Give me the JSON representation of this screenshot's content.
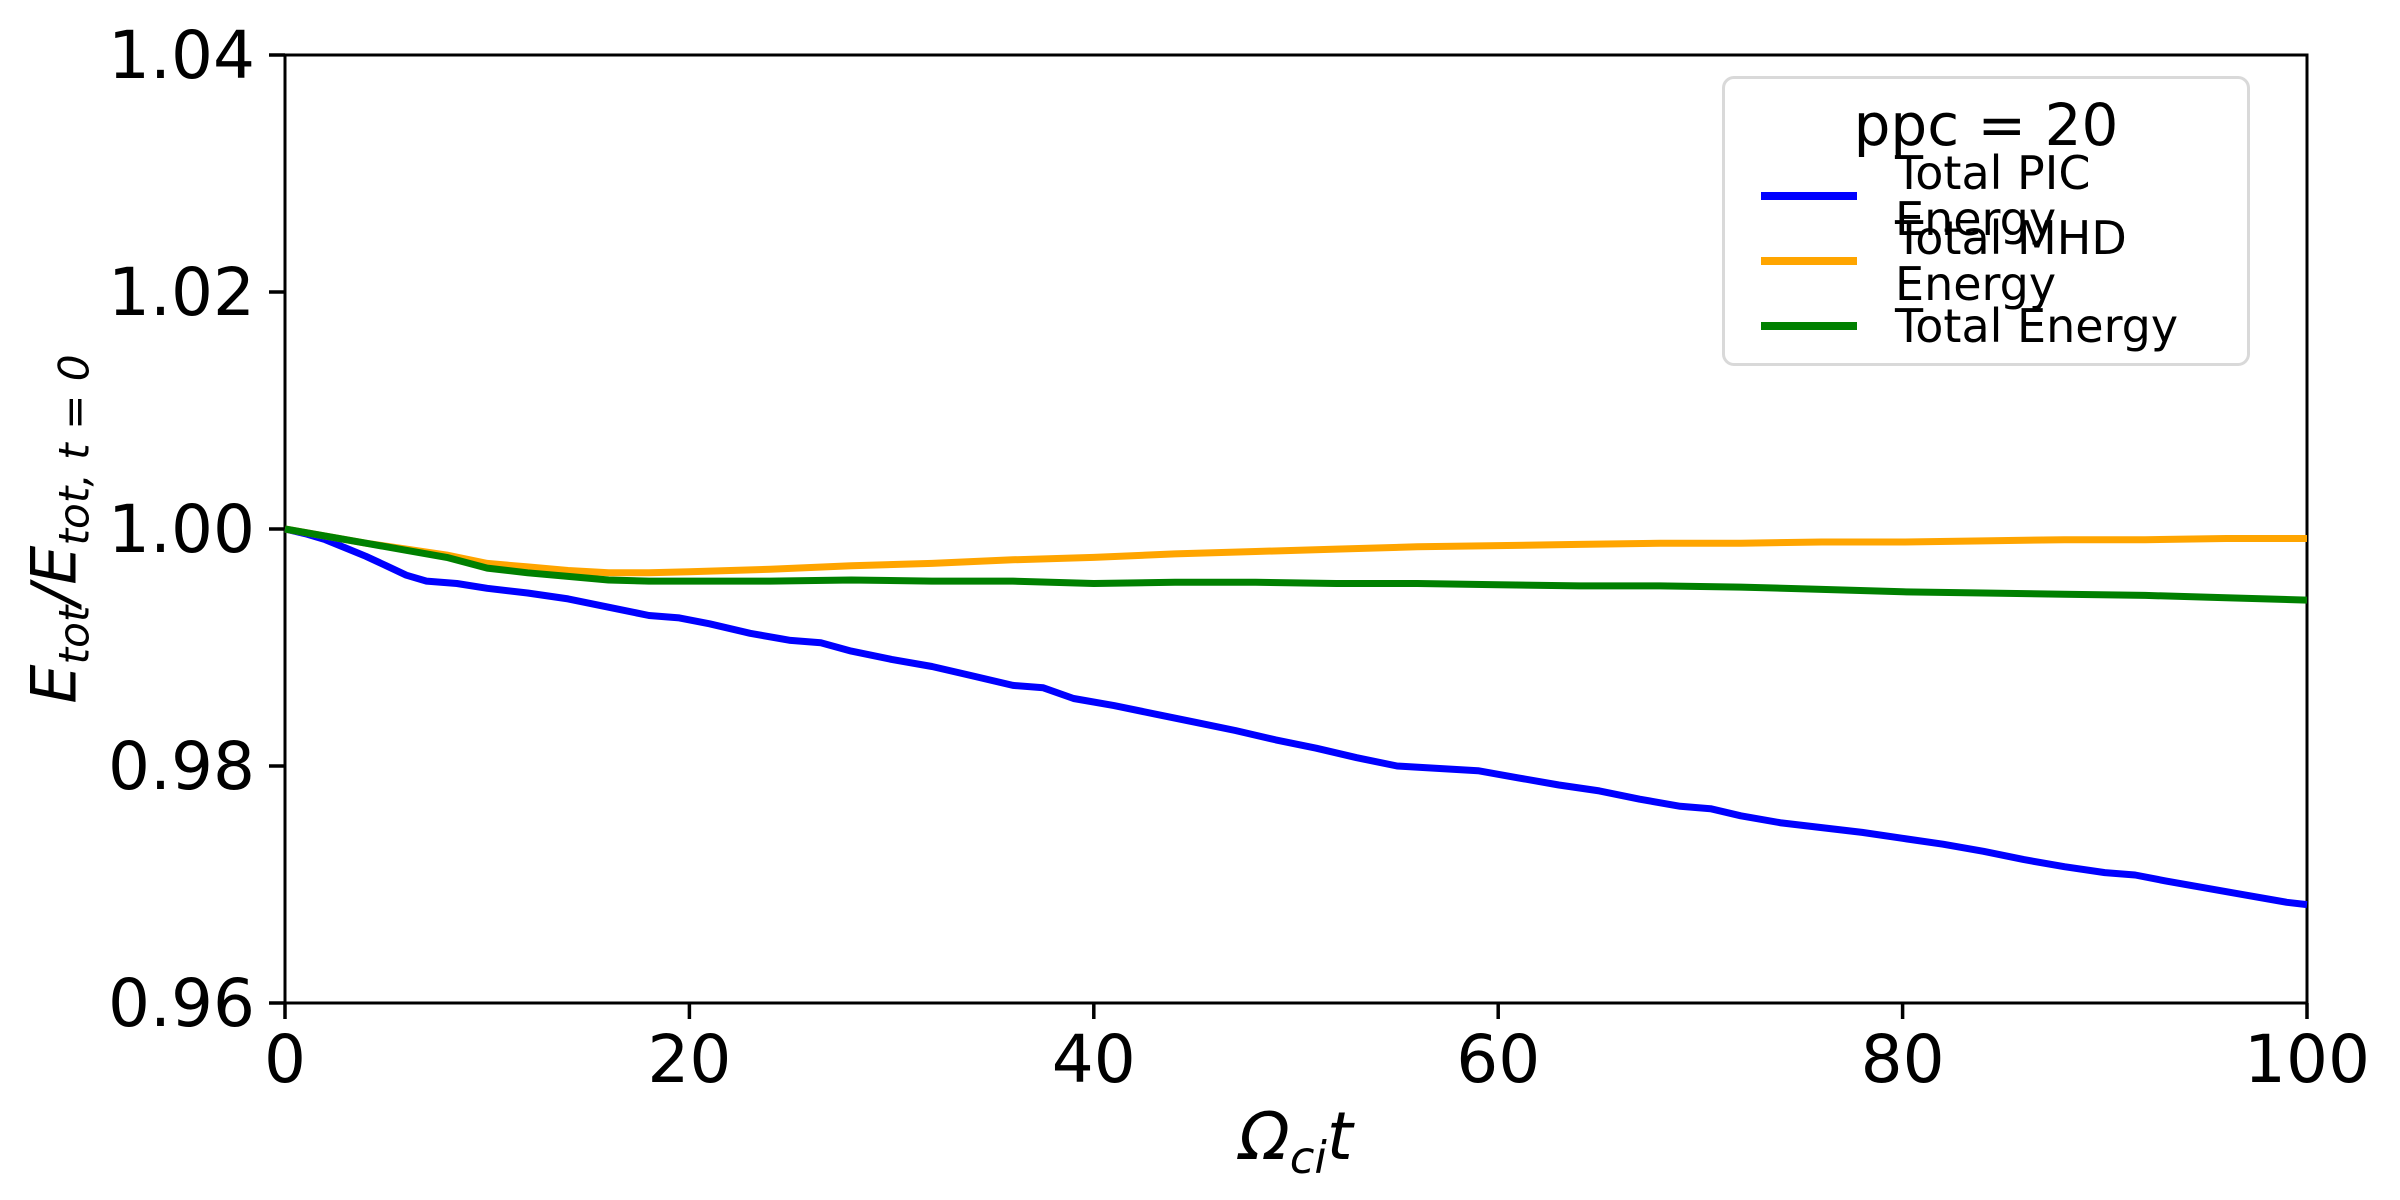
{
  "figure": {
    "background": "#ffffff",
    "spine_color": "#000000",
    "tick_color": "#000000"
  },
  "legend": {
    "title": "ppc = 20",
    "entries": [
      {
        "label": "Total PIC Energy",
        "color": "#0000ff"
      },
      {
        "label": "Total MHD Energy",
        "color": "#ffa500"
      },
      {
        "label": "Total Energy",
        "color": "#008000"
      }
    ]
  },
  "axes": {
    "xlabel": {
      "base": "Ω",
      "sub": "ci",
      "tail": "t"
    },
    "ylabel": {
      "base1": "E",
      "sub1": "tot",
      "slash": "/",
      "base2": "E",
      "sub2": "tot, t = 0"
    }
  },
  "chart_data": {
    "type": "line",
    "title": "",
    "xlabel": "Omega_ci * t",
    "ylabel": "E_tot / E_tot,t=0",
    "xlim": [
      0,
      100
    ],
    "ylim": [
      0.96,
      1.04
    ],
    "grid": false,
    "legend_position": "upper right",
    "legend_title": "ppc = 20",
    "x_ticks": [
      0,
      20,
      40,
      60,
      80,
      100
    ],
    "x_tick_labels": [
      "0",
      "20",
      "40",
      "60",
      "80",
      "100"
    ],
    "y_ticks": [
      0.96,
      0.98,
      1.0,
      1.02,
      1.04
    ],
    "y_tick_labels": [
      "0.96",
      "0.98",
      "1.00",
      "1.02",
      "1.04"
    ],
    "series": [
      {
        "name": "Total PIC Energy",
        "id": "total-pic-energy",
        "color": "#0000ff",
        "x": [
          0,
          1,
          2,
          3,
          4,
          5,
          6,
          7,
          8.5,
          10,
          12,
          14,
          16,
          18,
          19.5,
          21,
          23,
          25,
          26.5,
          28,
          30,
          32,
          34,
          36,
          37.5,
          39,
          41,
          43,
          45,
          47,
          49,
          51,
          53,
          55,
          57,
          59,
          61,
          63,
          65,
          67,
          69,
          70.5,
          72,
          74,
          76,
          78,
          80,
          82,
          84,
          86,
          88,
          90,
          91.5,
          93,
          95,
          97,
          99,
          100
        ],
        "y": [
          1.0,
          0.9996,
          0.9991,
          0.9984,
          0.9977,
          0.9969,
          0.9961,
          0.9956,
          0.9954,
          0.995,
          0.9946,
          0.9941,
          0.9934,
          0.9927,
          0.9925,
          0.992,
          0.9912,
          0.9906,
          0.9904,
          0.9897,
          0.989,
          0.9884,
          0.9876,
          0.9868,
          0.9866,
          0.9857,
          0.9851,
          0.9844,
          0.9837,
          0.983,
          0.9822,
          0.9815,
          0.9807,
          0.98,
          0.9798,
          0.9796,
          0.979,
          0.9784,
          0.9779,
          0.9772,
          0.9766,
          0.9764,
          0.9758,
          0.9752,
          0.9748,
          0.9744,
          0.9739,
          0.9734,
          0.9728,
          0.9721,
          0.9715,
          0.971,
          0.9708,
          0.9703,
          0.9697,
          0.9691,
          0.9685,
          0.9683
        ]
      },
      {
        "name": "Total MHD Energy",
        "id": "total-mhd-energy",
        "color": "#ffa500",
        "x": [
          0,
          2,
          4,
          6,
          8,
          10,
          12,
          14,
          16,
          18,
          20,
          24,
          28,
          32,
          36,
          40,
          44,
          48,
          52,
          56,
          60,
          64,
          68,
          72,
          76,
          80,
          84,
          88,
          92,
          96,
          100
        ],
        "y": [
          1.0,
          0.9994,
          0.9988,
          0.9983,
          0.9978,
          0.9971,
          0.9968,
          0.9965,
          0.9963,
          0.9963,
          0.9964,
          0.9966,
          0.9969,
          0.9971,
          0.9974,
          0.9976,
          0.9979,
          0.9981,
          0.9983,
          0.9985,
          0.9986,
          0.9987,
          0.9988,
          0.9988,
          0.9989,
          0.9989,
          0.999,
          0.9991,
          0.9991,
          0.9992,
          0.9992
        ]
      },
      {
        "name": "Total Energy",
        "id": "total-energy",
        "color": "#008000",
        "x": [
          0,
          2,
          4,
          6,
          8,
          10,
          12,
          14,
          16,
          18,
          20,
          24,
          28,
          32,
          36,
          40,
          44,
          48,
          52,
          56,
          60,
          64,
          68,
          72,
          76,
          80,
          84,
          88,
          92,
          96,
          100
        ],
        "y": [
          1.0,
          0.9994,
          0.9988,
          0.9982,
          0.9976,
          0.9967,
          0.9963,
          0.996,
          0.9957,
          0.9956,
          0.9956,
          0.9956,
          0.9957,
          0.9956,
          0.9956,
          0.9954,
          0.9955,
          0.9955,
          0.9954,
          0.9954,
          0.9953,
          0.9952,
          0.9952,
          0.9951,
          0.9949,
          0.9947,
          0.9946,
          0.9945,
          0.9944,
          0.9942,
          0.994
        ]
      }
    ]
  }
}
